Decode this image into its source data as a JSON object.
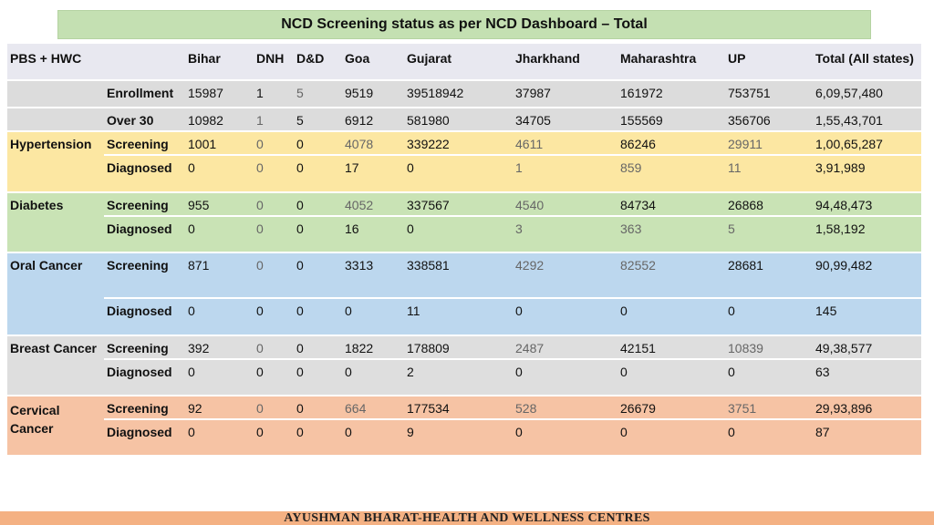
{
  "title": "NCD Screening status as per NCD Dashboard – Total",
  "header": {
    "first": "PBS + HWC",
    "columns": [
      "Bihar",
      "DNH",
      "D&D",
      "Goa",
      "Gujarat",
      "Jharkhand",
      "Maharashtra",
      "UP",
      "Total (All states)"
    ]
  },
  "rows": {
    "enrollment": {
      "label": "Enrollment",
      "values": [
        "15987",
        "1",
        "5",
        "9519",
        "39518942",
        "37987",
        "161972",
        "753751",
        "6,09,57,480"
      ]
    },
    "over30": {
      "label": "Over 30",
      "values": [
        "10982",
        "1",
        "5",
        "6912",
        "581980",
        "34705",
        "155569",
        "356706",
        "1,55,43,701"
      ]
    },
    "hypertension": {
      "group": "Hypertension",
      "screening": {
        "label": "Screening",
        "values": [
          "1001",
          "0",
          "0",
          "4078",
          "339222",
          "4611",
          "86246",
          "29911",
          "1,00,65,287"
        ]
      },
      "diagnosed": {
        "label": "Diagnosed",
        "values": [
          "0",
          "0",
          "0",
          "17",
          "0",
          "1",
          "859",
          "11",
          "3,91,989"
        ]
      }
    },
    "diabetes": {
      "group": "Diabetes",
      "screening": {
        "label": "Screening",
        "values": [
          "955",
          "0",
          "0",
          "4052",
          "337567",
          "4540",
          "84734",
          "26868",
          "94,48,473"
        ]
      },
      "diagnosed": {
        "label": "Diagnosed",
        "values": [
          "0",
          "0",
          "0",
          "16",
          "0",
          "3",
          "363",
          "5",
          "1,58,192"
        ]
      }
    },
    "oral": {
      "group": "Oral Cancer",
      "screening": {
        "label": "Screening",
        "values": [
          "871",
          "0",
          "0",
          "3313",
          "338581",
          "4292",
          "82552",
          "28681",
          "90,99,482"
        ]
      },
      "diagnosed": {
        "label": "Diagnosed",
        "values": [
          "0",
          "0",
          "0",
          "0",
          "11",
          "0",
          "0",
          "0",
          "145"
        ]
      }
    },
    "breast": {
      "group": "Breast Cancer",
      "screening": {
        "label": "Screening",
        "values": [
          "392",
          "0",
          "0",
          "1822",
          "178809",
          "2487",
          "42151",
          "10839",
          "49,38,577"
        ]
      },
      "diagnosed": {
        "label": "Diagnosed",
        "values": [
          "0",
          "0",
          "0",
          "0",
          "2",
          "0",
          "0",
          "0",
          "63"
        ]
      }
    },
    "cervical": {
      "group": "Cervical Cancer",
      "screening": {
        "label": "Screening",
        "values": [
          "92",
          "0",
          "0",
          "664",
          "177534",
          "528",
          "26679",
          "3751",
          "29,93,896"
        ]
      },
      "diagnosed": {
        "label": "Diagnosed",
        "values": [
          "0",
          "0",
          "0",
          "0",
          "9",
          "0",
          "0",
          "0",
          "87"
        ]
      }
    }
  },
  "footer": "AYUSHMAN BHARAT-HEALTH AND WELLNESS CENTRES"
}
